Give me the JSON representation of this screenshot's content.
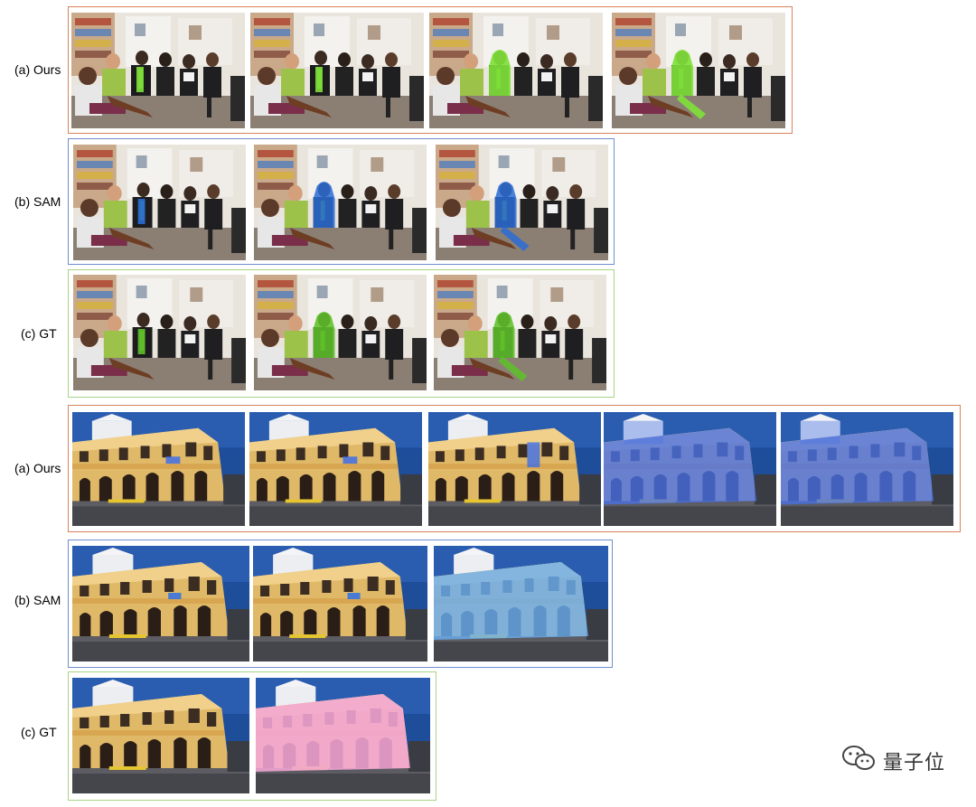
{
  "rows": [
    {
      "label": "(a) Ours"
    },
    {
      "label": "(b) SAM"
    },
    {
      "label": "(c) GT"
    },
    {
      "label": "(a) Ours"
    },
    {
      "label": "(b) SAM"
    },
    {
      "label": "(c) GT"
    }
  ],
  "colors": {
    "ours_frame": "#d9825b",
    "sam_frame": "#6f8fcf",
    "gt_frame": "#a9d486",
    "mask_green": "#7fe03a",
    "mask_blue": "#4a7fd6",
    "mask_pink": "#f0a2d0"
  },
  "watermark": {
    "text": "量子位",
    "icon": "wechat-icon"
  }
}
